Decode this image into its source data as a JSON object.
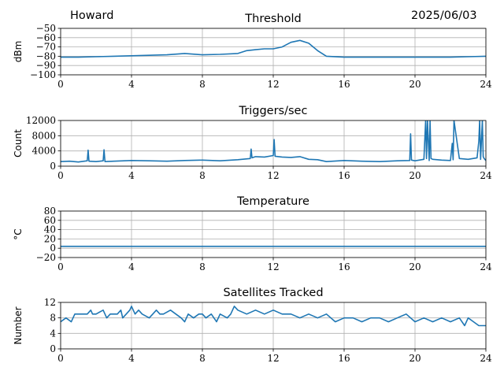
{
  "header": {
    "station": "Howard",
    "date": "2025/06/03"
  },
  "colors": {
    "series": "#1f77b4",
    "grid": "#b0b0b0",
    "axis": "#000000"
  },
  "chart_data": [
    {
      "id": "threshold",
      "type": "line",
      "title": "Threshold",
      "xlabel": "",
      "ylabel": "dBm",
      "xlim": [
        0,
        24
      ],
      "ylim": [
        -100,
        -50
      ],
      "xticks": [
        0,
        4,
        8,
        12,
        16,
        20,
        24
      ],
      "yticks": [
        -100,
        -90,
        -80,
        -70,
        -60,
        -50
      ],
      "yticklabels": [
        "−100",
        "−90",
        "−80",
        "−70",
        "−60",
        "−50"
      ],
      "grid": true,
      "series": [
        {
          "x": [
            0,
            1,
            2,
            3,
            4,
            5,
            6,
            7,
            8,
            9,
            10,
            10.5,
            11,
            11.5,
            12,
            12.5,
            13,
            13.5,
            14,
            14.5,
            15,
            16,
            18,
            20,
            22,
            23,
            24
          ],
          "values": [
            -81,
            -81,
            -80.5,
            -80,
            -79.5,
            -79,
            -78.5,
            -77,
            -78.5,
            -78,
            -77,
            -74,
            -73,
            -72,
            -72,
            -70,
            -65,
            -63,
            -66,
            -74,
            -80,
            -81,
            -81,
            -81,
            -81,
            -80.5,
            -80
          ]
        }
      ]
    },
    {
      "id": "triggers",
      "type": "line",
      "title": "Triggers/sec",
      "xlabel": "",
      "ylabel": "Count",
      "xlim": [
        0,
        24
      ],
      "ylim": [
        0,
        12000
      ],
      "xticks": [
        0,
        4,
        8,
        12,
        16,
        20,
        24
      ],
      "yticks": [
        0,
        4000,
        8000,
        12000
      ],
      "yticklabels": [
        "0",
        "4000",
        "8000",
        "12000"
      ],
      "grid": true,
      "series": [
        {
          "x": [
            0,
            0.5,
            1,
            1.5,
            1.55,
            1.6,
            2,
            2.4,
            2.45,
            2.5,
            3,
            4,
            5,
            6,
            7,
            8,
            9,
            10,
            10.7,
            10.75,
            10.8,
            11,
            11.5,
            12,
            12.05,
            12.1,
            12.5,
            13,
            13.5,
            14,
            14.5,
            15,
            16,
            17,
            18,
            19,
            19.7,
            19.75,
            19.8,
            20,
            20.5,
            20.6,
            20.65,
            20.7,
            20.8,
            20.85,
            20.9,
            21,
            21.5,
            22,
            22.1,
            22.15,
            22.2,
            22.5,
            23,
            23.5,
            23.6,
            23.65,
            23.7,
            23.8,
            23.85,
            23.9,
            24
          ],
          "values": [
            1200,
            1300,
            1100,
            1400,
            4200,
            1300,
            1200,
            1400,
            4300,
            1200,
            1300,
            1500,
            1400,
            1300,
            1500,
            1600,
            1400,
            1700,
            2000,
            4500,
            2200,
            2500,
            2400,
            2800,
            7000,
            2600,
            2400,
            2300,
            2500,
            1800,
            1700,
            1200,
            1500,
            1300,
            1200,
            1400,
            1500,
            8500,
            1600,
            1400,
            1800,
            12000,
            2000,
            12000,
            1500,
            12000,
            2000,
            1800,
            1600,
            1500,
            6000,
            1700,
            12000,
            2000,
            1800,
            2200,
            6500,
            12000,
            1800,
            12000,
            2500,
            2000,
            1500
          ]
        }
      ]
    },
    {
      "id": "temperature",
      "type": "line",
      "title": "Temperature",
      "xlabel": "",
      "ylabel": "°C",
      "xlim": [
        0,
        24
      ],
      "ylim": [
        -20,
        80
      ],
      "xticks": [
        0,
        4,
        8,
        12,
        16,
        20,
        24
      ],
      "yticks": [
        -20,
        0,
        20,
        40,
        60,
        80
      ],
      "yticklabels": [
        "−20",
        "0",
        "20",
        "40",
        "60",
        "80"
      ],
      "grid": true,
      "series": [
        {
          "x": [
            0,
            24
          ],
          "values": [
            4,
            4
          ]
        }
      ]
    },
    {
      "id": "satellites",
      "type": "line",
      "title": "Satellites Tracked",
      "xlabel": "",
      "ylabel": "Number",
      "xlim": [
        0,
        24
      ],
      "ylim": [
        0,
        12
      ],
      "xticks": [
        0,
        4,
        8,
        12,
        16,
        20,
        24
      ],
      "xticklabels": [
        "0",
        "4",
        "8",
        "12",
        "16",
        "20",
        "24"
      ],
      "yticks": [
        0,
        4,
        8,
        12
      ],
      "yticklabels": [
        "0",
        "4",
        "8",
        "12"
      ],
      "grid": true,
      "series": [
        {
          "x": [
            0,
            0.3,
            0.6,
            0.8,
            1.5,
            1.7,
            1.8,
            2.0,
            2.4,
            2.6,
            2.8,
            3.2,
            3.4,
            3.5,
            3.7,
            3.9,
            4.0,
            4.2,
            4.4,
            4.6,
            5.0,
            5.2,
            5.4,
            5.6,
            5.8,
            6.2,
            6.5,
            6.8,
            7.0,
            7.2,
            7.5,
            7.8,
            8.0,
            8.2,
            8.5,
            8.8,
            9.0,
            9.4,
            9.6,
            9.8,
            10.0,
            10.5,
            11.0,
            11.5,
            12.0,
            12.5,
            13.0,
            13.5,
            14.0,
            14.5,
            15.0,
            15.5,
            16.0,
            16.5,
            17.0,
            17.5,
            18.0,
            18.5,
            19.0,
            19.5,
            20.0,
            20.5,
            21.0,
            21.5,
            22.0,
            22.5,
            22.8,
            23.0,
            23.3,
            23.6,
            24
          ],
          "values": [
            7,
            8,
            7,
            9,
            9,
            10,
            9,
            9,
            10,
            8,
            9,
            9,
            10,
            8,
            9,
            10,
            11,
            9,
            10,
            9,
            8,
            9,
            10,
            9,
            9,
            10,
            9,
            8,
            7,
            9,
            8,
            9,
            9,
            8,
            9,
            7,
            9,
            8,
            9,
            11,
            10,
            9,
            10,
            9,
            10,
            9,
            9,
            8,
            9,
            8,
            9,
            7,
            8,
            8,
            7,
            8,
            8,
            7,
            8,
            9,
            7,
            8,
            7,
            8,
            7,
            8,
            6,
            8,
            7,
            6,
            6
          ]
        }
      ]
    }
  ]
}
